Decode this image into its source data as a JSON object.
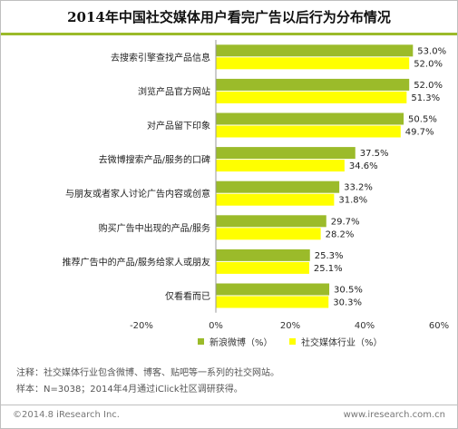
{
  "title": "2014年中国社交媒体用户看完广告以后行为分布情况",
  "chart_data": {
    "type": "bar",
    "orientation": "horizontal",
    "categories": [
      "去搜索引擎查找产品信息",
      "浏览产品官方网站",
      "对产品留下印象",
      "去微博搜索产品/服务的口碑",
      "与朋友或者家人讨论广告内容或创意",
      "购买广告中出现的产品/服务",
      "推荐广告中的产品/服务给家人或朋友",
      "仅看看而已"
    ],
    "series": [
      {
        "name": "新浪微博（%）",
        "values": [
          53.0,
          52.0,
          50.5,
          37.5,
          33.2,
          29.7,
          25.3,
          30.5
        ],
        "color": "#9bbb2a"
      },
      {
        "name": "社交媒体行业（%）",
        "values": [
          52.0,
          51.3,
          49.7,
          34.6,
          31.8,
          28.2,
          25.1,
          30.3
        ],
        "color": "#ffff00"
      }
    ],
    "value_labels": [
      [
        "53.0%",
        "52.0%",
        "50.5%",
        "37.5%",
        "33.2%",
        "29.7%",
        "25.3%",
        "30.5%"
      ],
      [
        "52.0%",
        "51.3%",
        "49.7%",
        "34.6%",
        "31.8%",
        "28.2%",
        "25.1%",
        "30.3%"
      ]
    ],
    "xlim": [
      -20,
      60
    ],
    "x_ticks": [
      -20,
      0,
      20,
      40,
      60
    ],
    "x_tick_labels": [
      "-20%",
      "0%",
      "20%",
      "40%",
      "60%"
    ],
    "legend_position": "bottom",
    "grid": false
  },
  "notes": [
    "注释：社交媒体行业包含微博、博客、贴吧等一系列的社交网站。",
    "样本：N=3038；2014年4月通过iClick社区调研获得。"
  ],
  "footer": {
    "left": "©2014.8 iResearch Inc.",
    "right": "www.iresearch.com.cn"
  }
}
